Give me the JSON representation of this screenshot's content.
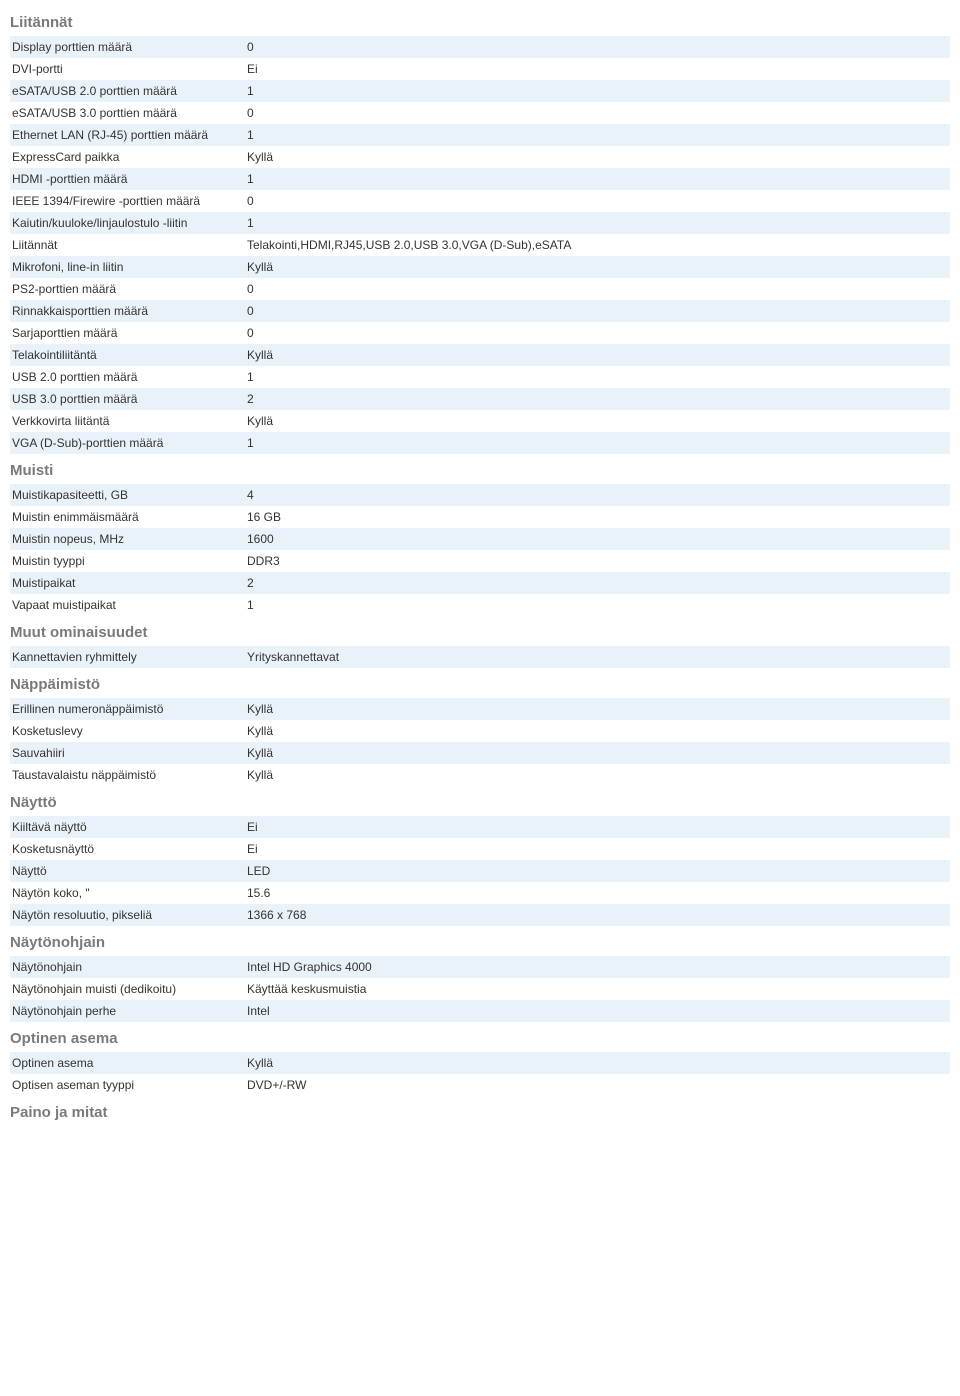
{
  "styling": {
    "body_background": "#ffffff",
    "alt_row_background": "#eaf2f9",
    "section_title_color": "#7a7a7a",
    "text_color": "#333333",
    "font_family": "Trebuchet MS, Verdana, Arial, sans-serif",
    "body_fontsize": 12,
    "section_title_fontsize": 15,
    "label_col_width": 235
  },
  "sections": [
    {
      "title": "Liitännät",
      "rows": [
        {
          "label": "Display porttien määrä",
          "value": "0"
        },
        {
          "label": "DVI-portti",
          "value": "Ei"
        },
        {
          "label": "eSATA/USB 2.0 porttien määrä",
          "value": "1"
        },
        {
          "label": "eSATA/USB 3.0 porttien määrä",
          "value": "0"
        },
        {
          "label": "Ethernet LAN (RJ-45) porttien määrä",
          "value": "1"
        },
        {
          "label": "ExpressCard paikka",
          "value": "Kyllä"
        },
        {
          "label": "HDMI -porttien määrä",
          "value": "1"
        },
        {
          "label": "IEEE 1394/Firewire -porttien määrä",
          "value": "0"
        },
        {
          "label": "Kaiutin/kuuloke/linjaulostulo -liitin",
          "value": "1"
        },
        {
          "label": "Liitännät",
          "value": "Telakointi,HDMI,RJ45,USB 2.0,USB 3.0,VGA (D-Sub),eSATA"
        },
        {
          "label": "Mikrofoni, line-in liitin",
          "value": "Kyllä"
        },
        {
          "label": "PS2-porttien määrä",
          "value": "0"
        },
        {
          "label": "Rinnakkaisporttien määrä",
          "value": "0"
        },
        {
          "label": "Sarjaporttien määrä",
          "value": "0"
        },
        {
          "label": "Telakointiliitäntä",
          "value": "Kyllä"
        },
        {
          "label": "USB 2.0 porttien määrä",
          "value": "1"
        },
        {
          "label": "USB 3.0 porttien määrä",
          "value": "2"
        },
        {
          "label": "Verkkovirta liitäntä",
          "value": "Kyllä"
        },
        {
          "label": "VGA (D-Sub)-porttien määrä",
          "value": "1"
        }
      ]
    },
    {
      "title": "Muisti",
      "rows": [
        {
          "label": "Muistikapasiteetti, GB",
          "value": "4"
        },
        {
          "label": "Muistin enimmäismäärä",
          "value": "16 GB"
        },
        {
          "label": "Muistin nopeus, MHz",
          "value": "1600"
        },
        {
          "label": "Muistin tyyppi",
          "value": "DDR3"
        },
        {
          "label": "Muistipaikat",
          "value": "2"
        },
        {
          "label": "Vapaat muistipaikat",
          "value": "1"
        }
      ]
    },
    {
      "title": "Muut ominaisuudet",
      "rows": [
        {
          "label": "Kannettavien ryhmittely",
          "value": "Yrityskannettavat"
        }
      ]
    },
    {
      "title": "Näppäimistö",
      "rows": [
        {
          "label": "Erillinen numeronäppäimistö",
          "value": "Kyllä"
        },
        {
          "label": "Kosketuslevy",
          "value": "Kyllä"
        },
        {
          "label": "Sauvahiiri",
          "value": "Kyllä"
        },
        {
          "label": "Taustavalaistu näppäimistö",
          "value": "Kyllä"
        }
      ]
    },
    {
      "title": "Näyttö",
      "rows": [
        {
          "label": "Kiiltävä näyttö",
          "value": "Ei"
        },
        {
          "label": "Kosketusnäyttö",
          "value": "Ei"
        },
        {
          "label": "Näyttö",
          "value": "LED"
        },
        {
          "label": "Näytön koko, \"",
          "value": "15.6"
        },
        {
          "label": "Näytön resoluutio, pikseliä",
          "value": "1366 x 768"
        }
      ]
    },
    {
      "title": "Näytönohjain",
      "rows": [
        {
          "label": "Näytönohjain",
          "value": "Intel HD Graphics 4000"
        },
        {
          "label": "Näytönohjain muisti (dedikoitu)",
          "value": "Käyttää keskusmuistia"
        },
        {
          "label": "Näytönohjain perhe",
          "value": "Intel"
        }
      ]
    },
    {
      "title": "Optinen asema",
      "rows": [
        {
          "label": "Optinen asema",
          "value": "Kyllä"
        },
        {
          "label": "Optisen aseman tyyppi",
          "value": "DVD+/-RW"
        }
      ]
    },
    {
      "title": "Paino ja mitat",
      "rows": []
    }
  ]
}
